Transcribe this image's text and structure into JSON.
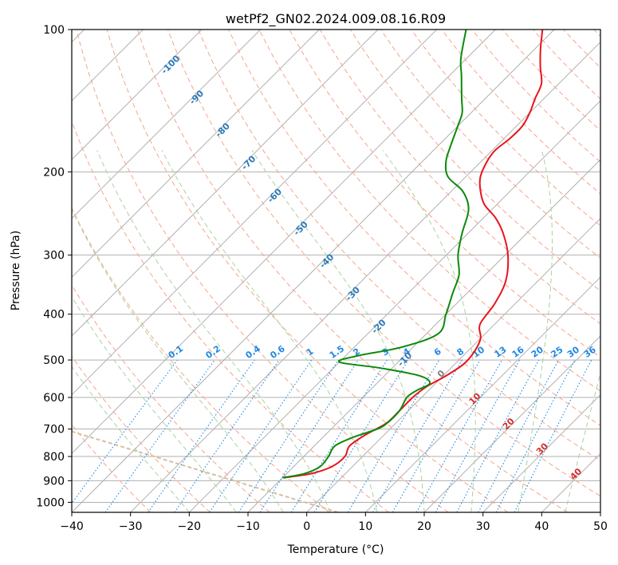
{
  "chart_data": {
    "type": "line",
    "title": "wetPf2_GN02.2024.009.08.16.R09",
    "xlabel": "Temperature (°C)",
    "ylabel": "Pressure (hPa)",
    "x_range": [
      -40,
      50
    ],
    "p_range": [
      1050,
      100
    ],
    "y_scale": "log",
    "skew": "isotherms tilted 45°",
    "grid": true,
    "x_ticks": [
      -40,
      -30,
      -20,
      -10,
      0,
      10,
      20,
      30,
      40,
      50
    ],
    "p_ticks": [
      1000,
      900,
      800,
      700,
      600,
      500,
      400,
      300,
      200,
      100
    ],
    "series": [
      {
        "color": "#e8141b",
        "points": [
          [
            887,
            -9.8
          ],
          [
            870,
            -5.9
          ],
          [
            840,
            -3.5
          ],
          [
            800,
            -3.0
          ],
          [
            760,
            -4.0
          ],
          [
            720,
            -3.2
          ],
          [
            680,
            -1.6
          ],
          [
            640,
            -1.5
          ],
          [
            600,
            -1.5
          ],
          [
            570,
            -1.0
          ],
          [
            540,
            0.5
          ],
          [
            510,
            1.5
          ],
          [
            480,
            1.2
          ],
          [
            450,
            0.0
          ],
          [
            420,
            -2.5
          ],
          [
            380,
            -3.5
          ],
          [
            340,
            -5.5
          ],
          [
            300,
            -9.5
          ],
          [
            270,
            -14.0
          ],
          [
            250,
            -18.0
          ],
          [
            235,
            -22.0
          ],
          [
            220,
            -25.0
          ],
          [
            205,
            -27.5
          ],
          [
            190,
            -29.0
          ],
          [
            180,
            -29.5
          ],
          [
            170,
            -29.0
          ],
          [
            160,
            -29.0
          ],
          [
            150,
            -30.0
          ],
          [
            140,
            -31.5
          ],
          [
            130,
            -33.0
          ],
          [
            120,
            -36.0
          ],
          [
            110,
            -39.0
          ],
          [
            100,
            -42.0
          ]
        ]
      },
      {
        "color": "#0a8a0a",
        "points": [
          [
            887,
            -10.0
          ],
          [
            870,
            -7.0
          ],
          [
            840,
            -5.5
          ],
          [
            800,
            -5.8
          ],
          [
            760,
            -6.5
          ],
          [
            730,
            -5.0
          ],
          [
            700,
            -2.2
          ],
          [
            680,
            -1.5
          ],
          [
            640,
            -1.5
          ],
          [
            600,
            -2.5
          ],
          [
            580,
            -2.0
          ],
          [
            560,
            -1.0
          ],
          [
            540,
            -4.0
          ],
          [
            520,
            -12.0
          ],
          [
            505,
            -20.0
          ],
          [
            490,
            -18.0
          ],
          [
            470,
            -12.0
          ],
          [
            440,
            -8.0
          ],
          [
            400,
            -10.0
          ],
          [
            360,
            -12.5
          ],
          [
            330,
            -14.5
          ],
          [
            300,
            -18.0
          ],
          [
            270,
            -21.0
          ],
          [
            240,
            -24.0
          ],
          [
            220,
            -28.0
          ],
          [
            205,
            -33.0
          ],
          [
            190,
            -36.0
          ],
          [
            175,
            -38.0
          ],
          [
            160,
            -40.0
          ],
          [
            150,
            -41.5
          ],
          [
            140,
            -44.0
          ],
          [
            125,
            -48.0
          ],
          [
            115,
            -51.0
          ],
          [
            100,
            -55.0
          ]
        ]
      }
    ],
    "isotherm_labels": [
      "-100",
      "-90",
      "-80",
      "-70",
      "-60",
      "-50",
      "-40",
      "-30",
      "-20",
      "-10"
    ],
    "isotherm_label_values": [
      -100,
      -90,
      -80,
      -70,
      -60,
      -50,
      -40,
      -30,
      -20,
      -10
    ],
    "isotherm_label_color": "#2b78b8",
    "mixing_ratio_labels": [
      "0.1",
      "0.2",
      "0.4",
      "0.6",
      "1",
      "1.5",
      "2",
      "3",
      "4",
      "6",
      "8",
      "10",
      "13",
      "16",
      "20",
      "25",
      "30",
      "36"
    ],
    "mixing_ratio_values": [
      0.1,
      0.2,
      0.4,
      0.6,
      1,
      1.5,
      2,
      3,
      4,
      6,
      8,
      10,
      13,
      16,
      20,
      25,
      30,
      36
    ],
    "mixing_ratio_color": "#1e88e5",
    "warm_labels": [
      "0",
      "10",
      "20",
      "30",
      "40"
    ],
    "warm_label_values": [
      0,
      10,
      20,
      30,
      40
    ],
    "warm_label_colors": [
      "#808080",
      "#d32f2f",
      "#d32f2f",
      "#d32f2f",
      "#d32f2f"
    ],
    "colors": {
      "isotherm": "#b0b0b0",
      "dry_adiabat": "#f5a58a",
      "moist_adiabat": "#a9d3a1",
      "mixing_ratio": "#1e88e5",
      "special": "#d9bfa0"
    }
  }
}
